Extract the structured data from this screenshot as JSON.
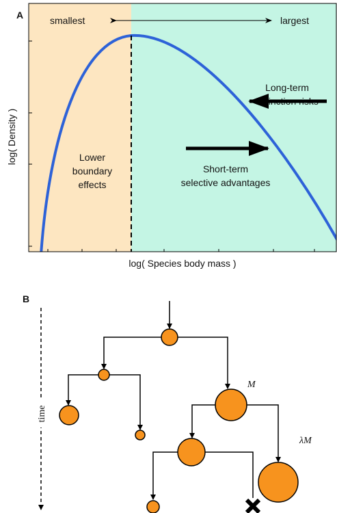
{
  "panel_a": {
    "label": "A",
    "smallest": "smallest",
    "largest": "largest",
    "extinction": [
      "Long-term",
      "extinction risks"
    ],
    "boundary": [
      "Lower",
      "boundary",
      "effects"
    ],
    "selective": [
      "Short-term",
      "selective advantages"
    ],
    "y_axis_label": "log( Density )",
    "x_axis_label": "log( Species body mass )"
  },
  "panel_b": {
    "label": "B",
    "time_label": "time",
    "parent_label": "M",
    "child_label": "λM"
  }
}
